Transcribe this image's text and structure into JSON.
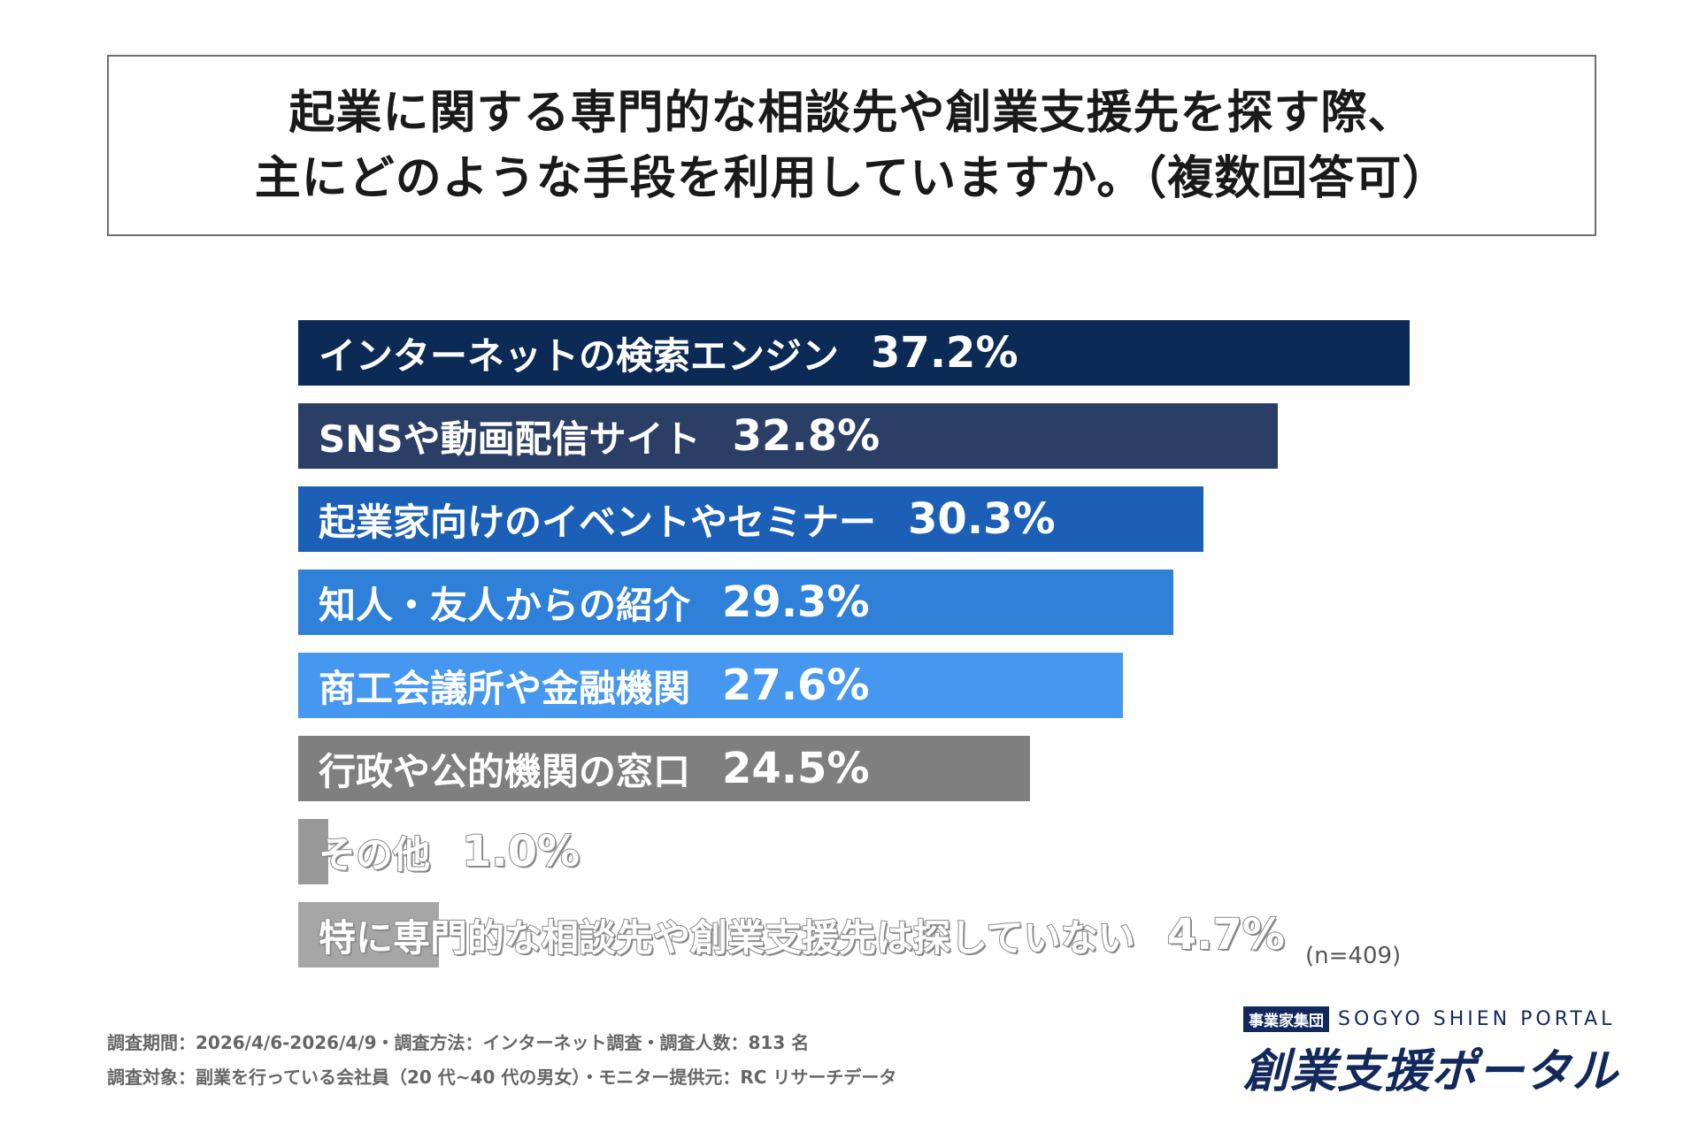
{
  "title": {
    "line1": "起業に関する専門的な相談先や創業支援先を探す際、",
    "line2": "主にどのような手段を利用していますか。（複数回答可）"
  },
  "chart_data": {
    "type": "bar",
    "orientation": "horizontal",
    "unit": "%",
    "categories": [
      "インターネットの検索エンジン",
      "SNSや動画配信サイト",
      "起業家向けのイベントやセミナー",
      "知人・友人からの紹介",
      "商工会議所や金融機関",
      "行政や公的機関の窓口",
      "その他",
      "特に専門的な相談先や創業支援先は探していない"
    ],
    "values": [
      37.2,
      32.8,
      30.3,
      29.3,
      27.6,
      24.5,
      1.0,
      4.7
    ],
    "labels": [
      "37.2%",
      "32.8%",
      "30.3%",
      "29.3%",
      "27.6%",
      "24.5%",
      "1.0%",
      "4.7%"
    ],
    "colors": [
      "#0b2a55",
      "#2b3f66",
      "#1b5fb6",
      "#2f80d8",
      "#4697ef",
      "#7f7f7f",
      "#999999",
      "#a6a6a6"
    ],
    "xlim": [
      0,
      37.2
    ],
    "grid": false,
    "legend": "none",
    "note": "(n=409)"
  },
  "footer": {
    "line1": "調査期間：2026/4/6-2026/4/9・調査方法：インターネット調査・調査人数：813 名",
    "line2": "調査対象：副業を行っている会社員（20 代~40 代の男女）・モニター提供元：RC リサーチデータ"
  },
  "logo": {
    "badge": "事業家集団",
    "english": "SOGYO SHIEN PORTAL",
    "japanese": "創業支援ポータル",
    "color": "#13295c"
  }
}
